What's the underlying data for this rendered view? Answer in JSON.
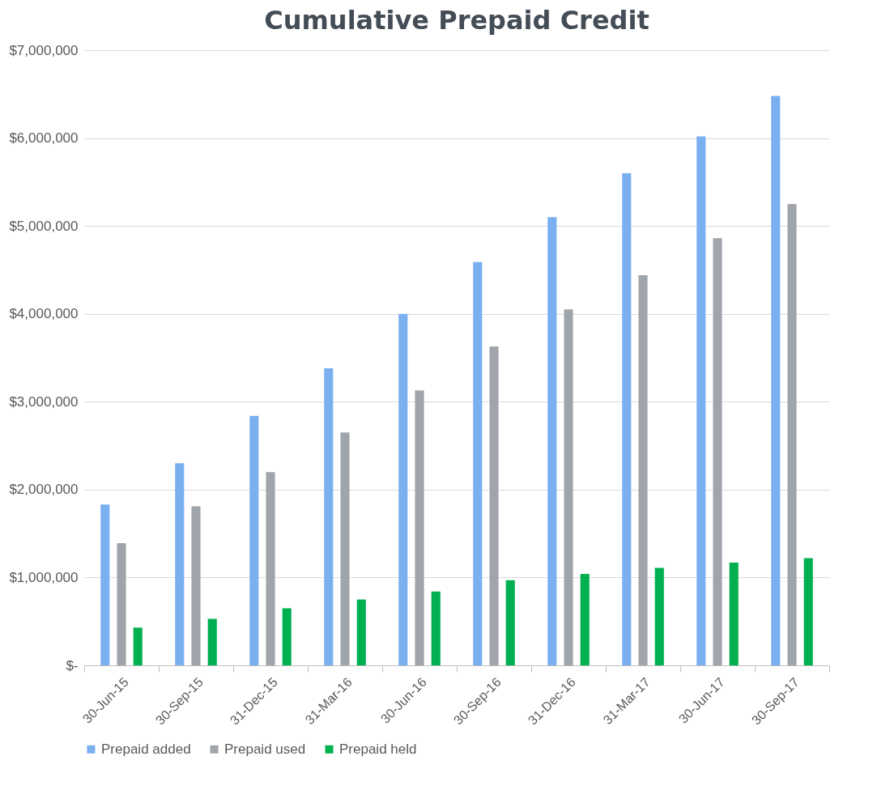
{
  "chart_data": {
    "type": "bar",
    "title": "Cumulative Prepaid Credit",
    "categories": [
      "30-Jun-15",
      "30-Sep-15",
      "31-Dec-15",
      "31-Mar-16",
      "30-Jun-16",
      "30-Sep-16",
      "31-Dec-16",
      "31-Mar-17",
      "30-Jun-17",
      "30-Sep-17"
    ],
    "series": [
      {
        "name": "Prepaid added",
        "color": "#7aaff0",
        "values": [
          1830000,
          2300000,
          2840000,
          3380000,
          4000000,
          4590000,
          5100000,
          5600000,
          6020000,
          6480000
        ]
      },
      {
        "name": "Prepaid used",
        "color": "#a0a4ab",
        "values": [
          1390000,
          1810000,
          2200000,
          2650000,
          3130000,
          3630000,
          4050000,
          4440000,
          4860000,
          5250000
        ]
      },
      {
        "name": "Prepaid held",
        "color": "#00b050",
        "values": [
          430000,
          530000,
          650000,
          750000,
          840000,
          970000,
          1040000,
          1110000,
          1170000,
          1220000
        ]
      }
    ],
    "ylim": [
      0,
      7000000
    ],
    "yticks": [
      {
        "value": 0,
        "label": "$-"
      },
      {
        "value": 1000000,
        "label": "$1,000,000"
      },
      {
        "value": 2000000,
        "label": "$2,000,000"
      },
      {
        "value": 3000000,
        "label": "$3,000,000"
      },
      {
        "value": 4000000,
        "label": "$4,000,000"
      },
      {
        "value": 5000000,
        "label": "$5,000,000"
      },
      {
        "value": 6000000,
        "label": "$6,000,000"
      },
      {
        "value": 7000000,
        "label": "$7,000,000"
      }
    ],
    "grid": "y",
    "legend": "bottom"
  }
}
